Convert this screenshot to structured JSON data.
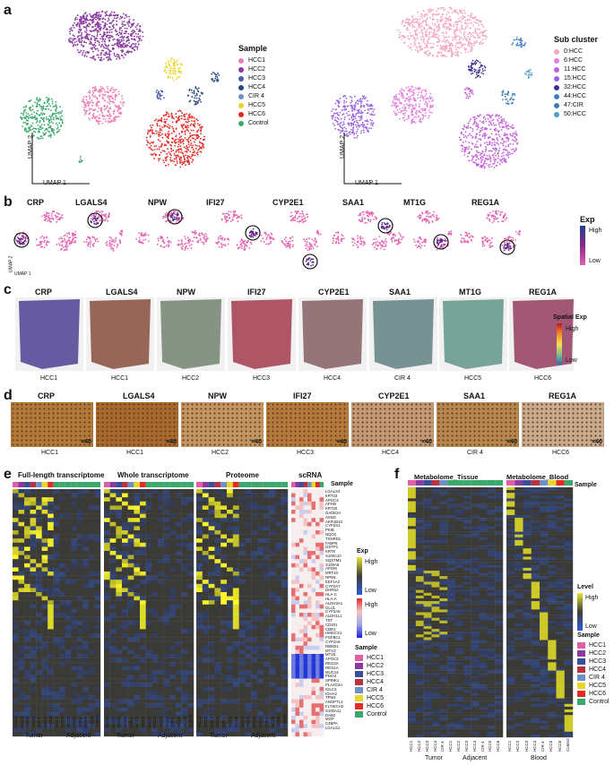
{
  "panel_a": {
    "letter": "a",
    "axis_y": "UMAP 2",
    "axis_x": "UMAP 1",
    "legend_sample": {
      "title": "Sample",
      "items": [
        {
          "label": "HCC1",
          "color": "#ee7fb4"
        },
        {
          "label": "HCC2",
          "color": "#8a3a9f"
        },
        {
          "label": "HCC3",
          "color": "#4b5da7"
        },
        {
          "label": "HCC4",
          "color": "#26477b"
        },
        {
          "label": "CIR 4",
          "color": "#6d91c6"
        },
        {
          "label": "HCC5",
          "color": "#e9d62a"
        },
        {
          "label": "HCC6",
          "color": "#e32b25"
        },
        {
          "label": "Control",
          "color": "#3aa86b"
        }
      ]
    },
    "legend_subcluster": {
      "title": "Sub cluster",
      "items": [
        {
          "label": "0:HCC",
          "color": "#f5a5bd"
        },
        {
          "label": "6:HCC",
          "color": "#e67fde"
        },
        {
          "label": "11:HCC",
          "color": "#c45fd8"
        },
        {
          "label": "15:HCC",
          "color": "#9b62e0"
        },
        {
          "label": "32:HCC",
          "color": "#3b2f90"
        },
        {
          "label": "44:HCC",
          "color": "#3e7ec9"
        },
        {
          "label": "47:CIR",
          "color": "#3c7fa8"
        },
        {
          "label": "50:HCC",
          "color": "#4fa0c8"
        }
      ]
    }
  },
  "panel_b": {
    "letter": "b",
    "genes": [
      "CRP",
      "LGALS4",
      "NPW",
      "IFI27",
      "CYP2E1",
      "SAA1",
      "MT1G",
      "REG1A"
    ],
    "axis_y": "UMAP 2",
    "axis_x": "UMAP 1",
    "legend": {
      "title": "Exp",
      "high": "High",
      "low": "Low"
    }
  },
  "panel_c": {
    "letter": "c",
    "genes": [
      "CRP",
      "LGALS4",
      "NPW",
      "IFI27",
      "CYP2E1",
      "SAA1",
      "MT1G",
      "REG1A"
    ],
    "samples": [
      "HCC1",
      "HCC1",
      "HCC2",
      "HCC3",
      "HCC4",
      "CIR 4",
      "HCC5",
      "HCC6"
    ],
    "legend": {
      "title": "Spatial Exp",
      "high": "High",
      "low": "Low"
    }
  },
  "panel_d": {
    "letter": "d",
    "genes": [
      "CRP",
      "LGALS4",
      "NPW",
      "IFI27",
      "CYP2E1",
      "SAA1",
      "REG1A"
    ],
    "samples": [
      "HCC1",
      "HCC1",
      "HCC2",
      "HCC3",
      "HCC4",
      "CIR 4",
      "HCC6"
    ],
    "magnification": "×40"
  },
  "panel_e": {
    "letter": "e",
    "titles": [
      "Full-length transcriptome",
      "Whole transcriptome",
      "Proteome",
      "scRNA"
    ],
    "sample_label": "Sample",
    "col_labels": [
      "HCC1",
      "HCC2",
      "HCC3",
      "HCC4",
      "CIR 4",
      "HCC5",
      "HCC6",
      "HCC1",
      "HCC2",
      "HCC3",
      "HCC4",
      "CIR 4",
      "HCC5",
      "HCC6",
      "Control"
    ],
    "group_labels": [
      "Tumor",
      "Adjacent"
    ],
    "genes": [
      "LGALS4",
      "KRT23",
      "APOC3",
      "APOB",
      "KRT20",
      "GADE2A",
      "ASNS",
      "AKR1B10",
      "CYP2S1",
      "PKIB",
      "NQO1",
      "TXNRD1",
      "FABP5",
      "GSTP1",
      "KRT8",
      "S100A10",
      "SQSTM1",
      "S100A6",
      "APOM",
      "MRT10",
      "NPM1",
      "EEF1A2",
      "CYP2A7",
      "DHRS2",
      "HLA-C",
      "HLA-A",
      "ALDH3A1",
      "GLUL",
      "CYP2A6",
      "ALDH1L1",
      "TST",
      "CD201",
      "CBR1",
      "HMGCS1",
      "FGFBC1",
      "CYP2A6",
      "RBMS1",
      "MT1G",
      "MT1E",
      "APOC3",
      "REG3A",
      "REG1A",
      "MUC13",
      "PDIA2",
      "SPINK1",
      "PLA2G2A",
      "IGLC2",
      "IGHA2",
      "TPM4",
      "ANGPTL4",
      "FLYWCH2",
      "S100A11",
      "DAB2",
      "MGP",
      "C4BPA",
      "LGALS1",
      "CFH"
    ],
    "legend_exp": {
      "title": "Exp",
      "high": "High",
      "low": "Low"
    },
    "legend_sc": {
      "high": "High",
      "low": "Low"
    },
    "legend_sample": {
      "title": "Sample",
      "items": [
        {
          "label": "HCC1",
          "color": "#e05fa6"
        },
        {
          "label": "HCC2",
          "color": "#8a3a9f"
        },
        {
          "label": "HCC3",
          "color": "#3a4f9a"
        },
        {
          "label": "HCC4",
          "color": "#b8323f"
        },
        {
          "label": "CIR 4",
          "color": "#6d91c6"
        },
        {
          "label": "HCC5",
          "color": "#e9d62a"
        },
        {
          "label": "HCC6",
          "color": "#e32b25"
        },
        {
          "label": "Control",
          "color": "#3aa86b"
        }
      ]
    }
  },
  "panel_f": {
    "letter": "f",
    "titles": [
      "Metabolome_Tissue",
      "Metabolome_Blood"
    ],
    "sample_label": "Sample",
    "group_labels": [
      "Tumor",
      "Adjacent",
      "Blood"
    ],
    "col_labels_tissue": [
      "HCC1",
      "HCC2",
      "HCC3",
      "HCC4",
      "CIR 4",
      "HCC1",
      "HCC2",
      "HCC3",
      "HCC4",
      "CIR 4",
      "HCC5",
      "HCC6"
    ],
    "col_labels_blood": [
      "HCC1",
      "HCC2",
      "HCC3",
      "HCC4",
      "CIR 4",
      "HCC5",
      "HCC6",
      "Control"
    ],
    "legend_level": {
      "title": "Level",
      "high": "High",
      "low": "Low"
    },
    "legend_sample": {
      "title": "Sample",
      "items": [
        {
          "label": "HCC1",
          "color": "#e05fa6"
        },
        {
          "label": "HCC2",
          "color": "#8a3a9f"
        },
        {
          "label": "HCC3",
          "color": "#3a4f9a"
        },
        {
          "label": "HCC4",
          "color": "#b8323f"
        },
        {
          "label": "CIR 4",
          "color": "#6d91c6"
        },
        {
          "label": "HCC5",
          "color": "#e9d62a"
        },
        {
          "label": "HCC6",
          "color": "#e32b25"
        },
        {
          "label": "Control",
          "color": "#3aa86b"
        }
      ]
    }
  }
}
